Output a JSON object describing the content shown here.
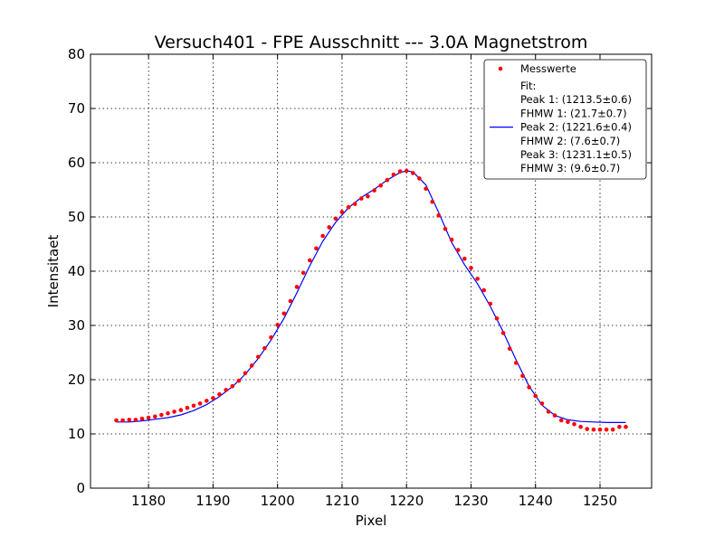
{
  "chart_data": {
    "type": "scatter",
    "title": "Versuch401 - FPE Ausschnitt --- 3.0A Magnetstrom",
    "xlabel": "Pixel",
    "ylabel": "Intensitaet",
    "xlim": [
      1171,
      1258
    ],
    "ylim": [
      0,
      80
    ],
    "xticks": [
      1180,
      1190,
      1200,
      1210,
      1220,
      1230,
      1240,
      1250
    ],
    "yticks": [
      0,
      10,
      20,
      30,
      40,
      50,
      60,
      70,
      80
    ],
    "grid": true,
    "legend_position": "top-right",
    "colors": {
      "points": "#ff0000",
      "fit": "#0000ff",
      "grid": "#000000",
      "axes": "#000000"
    },
    "series": [
      {
        "name": "Messwerte",
        "style": "points",
        "color": "#ff0000",
        "x": [
          1175,
          1176,
          1177,
          1178,
          1179,
          1180,
          1181,
          1182,
          1183,
          1184,
          1185,
          1186,
          1187,
          1188,
          1189,
          1190,
          1191,
          1192,
          1193,
          1194,
          1195,
          1196,
          1197,
          1198,
          1199,
          1200,
          1201,
          1202,
          1203,
          1204,
          1205,
          1206,
          1207,
          1208,
          1209,
          1210,
          1211,
          1212,
          1213,
          1214,
          1215,
          1216,
          1217,
          1218,
          1219,
          1220,
          1221,
          1222,
          1223,
          1224,
          1225,
          1226,
          1227,
          1228,
          1229,
          1230,
          1231,
          1232,
          1233,
          1234,
          1235,
          1236,
          1237,
          1238,
          1239,
          1240,
          1241,
          1242,
          1243,
          1244,
          1245,
          1246,
          1247,
          1248,
          1249,
          1250,
          1251,
          1252,
          1253,
          1254
        ],
        "y": [
          12.5,
          12.5,
          12.6,
          12.6,
          12.8,
          13.0,
          13.2,
          13.5,
          13.8,
          14.1,
          14.4,
          14.8,
          15.2,
          15.6,
          16.1,
          16.6,
          17.3,
          18.1,
          18.8,
          19.8,
          21.2,
          22.6,
          24.2,
          25.8,
          27.8,
          30.1,
          32.2,
          34.5,
          37.1,
          39.7,
          42.0,
          44.2,
          46.5,
          48.1,
          49.7,
          50.9,
          51.8,
          52.4,
          53.4,
          53.8,
          54.9,
          55.8,
          56.8,
          57.8,
          58.4,
          58.5,
          58.1,
          57.1,
          55.2,
          52.8,
          50.3,
          47.8,
          45.8,
          43.9,
          42.3,
          40.6,
          38.6,
          36.5,
          34.0,
          31.3,
          28.6,
          25.7,
          23.1,
          20.7,
          18.6,
          17.0,
          15.6,
          14.1,
          13.4,
          12.5,
          12.2,
          11.8,
          11.3,
          10.9,
          10.8,
          10.8,
          10.8,
          10.8,
          11.3,
          11.3
        ]
      },
      {
        "name": "Fit:\nPeak 1: (1213.5±0.6)\nFHMW 1: (21.7±0.7)\nPeak 2: (1221.6±0.4)\nFHMW 2: (7.6±0.7)\nPeak 3: (1231.1±0.5)\nFHMW 3: (9.6±0.7)",
        "style": "line",
        "color": "#0000ff",
        "x": [
          1175,
          1177,
          1179,
          1181,
          1183,
          1185,
          1187,
          1189,
          1191,
          1193,
          1195,
          1197,
          1199,
          1201,
          1203,
          1205,
          1207,
          1209,
          1211,
          1213,
          1215,
          1217,
          1219,
          1220,
          1221,
          1223,
          1225,
          1227,
          1229,
          1231,
          1233,
          1235,
          1237,
          1239,
          1241,
          1243,
          1245,
          1247,
          1249,
          1251,
          1254
        ],
        "y": [
          12.2,
          12.2,
          12.4,
          12.7,
          13.0,
          13.5,
          14.3,
          15.4,
          16.9,
          18.7,
          21.0,
          23.9,
          27.3,
          31.3,
          36.0,
          41.0,
          45.5,
          49.0,
          51.7,
          53.6,
          55.1,
          56.8,
          58.2,
          58.5,
          58.3,
          55.9,
          50.8,
          45.3,
          41.2,
          37.7,
          33.5,
          28.8,
          23.6,
          18.8,
          15.3,
          13.4,
          12.6,
          12.3,
          12.2,
          12.1,
          12.1
        ]
      }
    ],
    "legend": {
      "entries": [
        {
          "marker": "point",
          "lines": [
            "Messwerte"
          ]
        },
        {
          "marker": "line",
          "lines": [
            "Fit:",
            "Peak 1: (1213.5±0.6)",
            "FHMW 1: (21.7±0.7)",
            "Peak 2: (1221.6±0.4)",
            "FHMW 2: (7.6±0.7)",
            "Peak 3: (1231.1±0.5)",
            "FHMW 3: (9.6±0.7)"
          ]
        }
      ]
    }
  }
}
